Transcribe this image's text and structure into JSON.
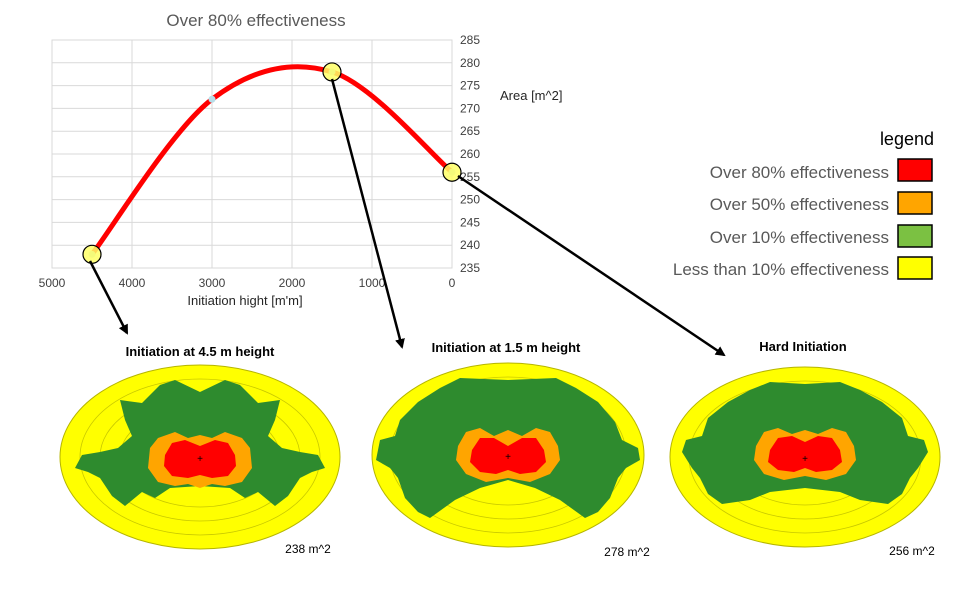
{
  "chart_data": {
    "type": "line",
    "title": "Over 80% effectiveness",
    "xlabel": "Initiation hight [m'm]",
    "ylabel": "Area [m^2]",
    "xlim": [
      5000,
      0
    ],
    "ylim": [
      235,
      285
    ],
    "x_ticks": [
      5000,
      4000,
      3000,
      2000,
      1000,
      0
    ],
    "y_ticks": [
      235,
      240,
      245,
      250,
      255,
      260,
      265,
      270,
      275,
      280,
      285
    ],
    "grid": true,
    "series": [
      {
        "color": "#ff0000",
        "x": [
          4500,
          3000,
          1500,
          0
        ],
        "y": [
          238,
          272,
          278,
          256
        ]
      }
    ],
    "highlighted_points": [
      {
        "x": 4500,
        "y": 238
      },
      {
        "x": 1500,
        "y": 278
      },
      {
        "x": 0,
        "y": 256
      }
    ]
  },
  "legend": {
    "title": "legend",
    "items": [
      {
        "label": "Over 80% effectiveness",
        "color": "#ff0000"
      },
      {
        "label": "Over 50% effectiveness",
        "color": "#ffa500"
      },
      {
        "label": "Over 10% effectiveness",
        "color": "#7bc142"
      },
      {
        "label": "Less than 10% effectiveness",
        "color": "#ffff00"
      }
    ]
  },
  "maps": [
    {
      "title": "Initiation at 4.5 m height",
      "area": "238 m^2"
    },
    {
      "title": "Initiation at 1.5 m height",
      "area": "278 m^2"
    },
    {
      "title": "Hard Initiation",
      "area": "256 m^2"
    }
  ]
}
